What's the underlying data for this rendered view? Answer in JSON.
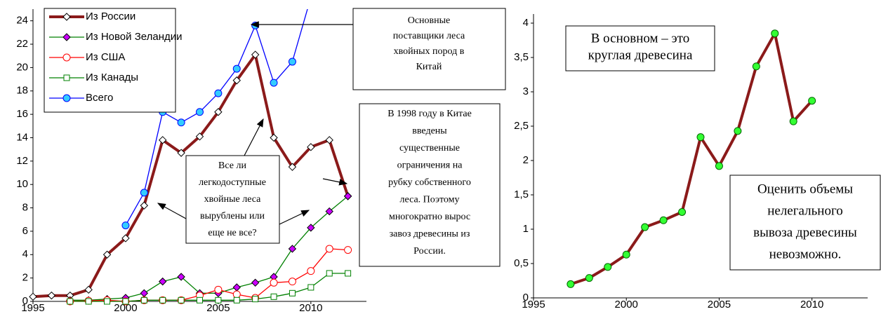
{
  "chart_data": [
    {
      "type": "line",
      "x": [
        1995,
        1996,
        1997,
        1998,
        1999,
        2000,
        2001,
        2002,
        2003,
        2004,
        2005,
        2006,
        2007,
        2008,
        2009,
        2010,
        2011,
        2012
      ],
      "xlim": [
        1995,
        2013
      ],
      "xticks": [
        1995,
        2000,
        2005,
        2010
      ],
      "ylim": [
        0,
        25
      ],
      "yticks": [
        0,
        2,
        4,
        6,
        8,
        10,
        12,
        14,
        16,
        18,
        20,
        22,
        24
      ],
      "series": [
        {
          "name": "Из России",
          "color": "#8b1a1a",
          "width": 4,
          "marker": "diamond",
          "marker_fill": "#ffffff",
          "marker_stroke": "#000000",
          "values": [
            0.4,
            0.5,
            0.5,
            1.0,
            4.0,
            5.4,
            8.2,
            13.8,
            12.7,
            14.1,
            16.2,
            18.9,
            21.1,
            14.0,
            11.5,
            13.2,
            13.8,
            9.0
          ]
        },
        {
          "name": "Из Новой Зеландии",
          "color": "#008000",
          "width": 1.3,
          "marker": "diamond",
          "marker_fill": "#cc00ff",
          "marker_stroke": "#000000",
          "values": [
            null,
            null,
            0.1,
            0.1,
            0.2,
            0.3,
            0.7,
            1.7,
            2.1,
            0.7,
            0.7,
            1.2,
            1.6,
            2.1,
            4.5,
            6.3,
            7.7,
            9.0
          ]
        },
        {
          "name": "Из США",
          "color": "#ff0000",
          "width": 1.3,
          "marker": "circle",
          "marker_fill": "#ffffff",
          "marker_stroke": "#ff0000",
          "values": [
            null,
            null,
            0.0,
            0.05,
            0.1,
            0.0,
            0.1,
            0.1,
            0.1,
            0.5,
            1.0,
            0.6,
            0.3,
            1.6,
            1.7,
            2.6,
            4.5,
            4.4
          ]
        },
        {
          "name": "Из Канады",
          "color": "#008000",
          "width": 1.3,
          "marker": "square",
          "marker_fill": "#ffffff",
          "marker_stroke": "#008000",
          "values": [
            null,
            null,
            0.0,
            0.0,
            0.0,
            0.0,
            0.1,
            0.1,
            0.1,
            0.1,
            0.1,
            0.1,
            0.2,
            0.4,
            0.7,
            1.2,
            2.4,
            2.4
          ]
        },
        {
          "name": "Всего",
          "color": "#0000ff",
          "width": 1.3,
          "marker": "circle",
          "marker_fill": "#33ccff",
          "marker_stroke": "#0000ff",
          "values": [
            null,
            null,
            null,
            null,
            null,
            6.5,
            9.3,
            16.2,
            15.3,
            16.2,
            17.8,
            19.9,
            23.6,
            18.7,
            20.5,
            26,
            null,
            null
          ]
        }
      ],
      "annotations": [
        {
          "lines": [
            "Основные",
            "поставщики леса",
            "хвойных пород  в",
            "Китай"
          ]
        },
        {
          "lines": [
            "В 1998 году в Китае",
            "введены",
            "существенные",
            "ограничения на",
            "рубку собственного",
            "леса. Поэтому",
            "многократно вырос",
            "завоз древесины из",
            "России."
          ]
        },
        {
          "lines": [
            "Все ли",
            "легкодоступные",
            "хвойные  леса",
            "вырублены или",
            "еще не все?"
          ]
        }
      ]
    },
    {
      "type": "line",
      "x": [
        1997,
        1998,
        1999,
        2000,
        2001,
        2002,
        2003,
        2004,
        2005,
        2006,
        2007,
        2008,
        2009,
        2010
      ],
      "xlim": [
        1995,
        2013
      ],
      "xticks": [
        1995,
        2000,
        2005,
        2010
      ],
      "ylim": [
        0,
        4
      ],
      "yticks": [
        0,
        {
          "value": 0.5,
          "label": "0,5"
        },
        1,
        {
          "value": 1.5,
          "label": "1,5"
        },
        2,
        {
          "value": 2.5,
          "label": "2,5"
        },
        3,
        {
          "value": 3.5,
          "label": "3,5"
        },
        4
      ],
      "series": [
        {
          "color": "#8b1a1a",
          "width": 4,
          "marker": "circle",
          "marker_fill": "#33ff33",
          "marker_stroke": "#006600",
          "values": [
            0.2,
            0.29,
            0.45,
            0.63,
            1.03,
            1.13,
            1.25,
            2.34,
            1.92,
            2.43,
            3.37,
            3.85,
            2.57,
            2.87
          ]
        }
      ],
      "annotations": [
        {
          "lines": [
            "В основном – это",
            "круглая древесина"
          ]
        },
        {
          "lines": [
            "Оценить объемы",
            "нелегального",
            "вывоза древесины",
            "невозможно."
          ]
        }
      ]
    }
  ]
}
